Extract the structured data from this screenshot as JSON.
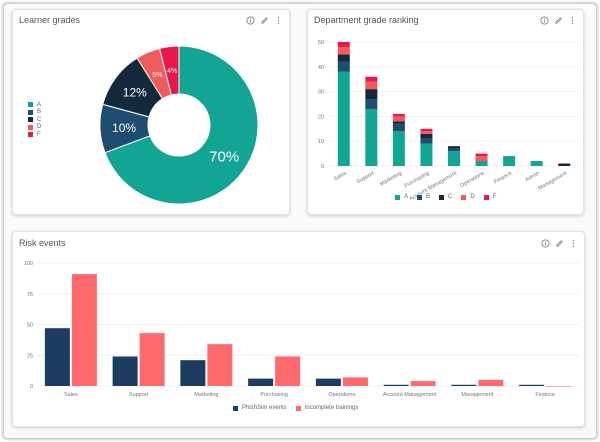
{
  "colors": {
    "A": "#12a594",
    "B": "#1e4d6f",
    "C": "#15293d",
    "D": "#f05b5b",
    "F": "#e8174b",
    "phish": "#1c3d5f",
    "incomplete": "#ff6a6f"
  },
  "icons": [
    "info-icon",
    "edit-icon",
    "more-vertical-icon"
  ],
  "learner_grades": {
    "title": "Learner grades",
    "legend": [
      {
        "label": "A",
        "color": "#12a594"
      },
      {
        "label": "B",
        "color": "#1e4d6f"
      },
      {
        "label": "C",
        "color": "#15293d"
      },
      {
        "label": "D",
        "color": "#f05b5b"
      },
      {
        "label": "F",
        "color": "#e8174b"
      }
    ]
  },
  "department_ranking": {
    "title": "Department grade ranking",
    "legend": [
      {
        "label": "A",
        "color": "#12a594"
      },
      {
        "label": "B",
        "color": "#1e4d6f"
      },
      {
        "label": "C",
        "color": "#15293d"
      },
      {
        "label": "D",
        "color": "#f05b5b"
      },
      {
        "label": "F",
        "color": "#e8174b"
      }
    ]
  },
  "risk_events": {
    "title": "Risk events",
    "legend": [
      {
        "label": "PhishSim events",
        "color": "#1c3d5f"
      },
      {
        "label": "Incomplete trainings",
        "color": "#ff6a6f"
      }
    ]
  },
  "chart_data": [
    {
      "type": "pie",
      "title": "Learner grades",
      "labels": [
        "A",
        "B",
        "C",
        "D",
        "F"
      ],
      "values": [
        70,
        10,
        12,
        5,
        4
      ],
      "slice_labels": [
        "70%",
        "10%",
        "12%",
        "5%",
        "4%"
      ],
      "donut": true,
      "legend": "left"
    },
    {
      "type": "bar",
      "stacked": true,
      "title": "Department grade ranking",
      "categories": [
        "Sales",
        "Support",
        "Marketing",
        "Purchasing",
        "Account Management",
        "Operations",
        "Finance",
        "Admin",
        "Management"
      ],
      "series": [
        {
          "name": "A",
          "values": [
            38,
            23,
            14,
            9,
            6,
            2,
            4,
            2,
            0
          ]
        },
        {
          "name": "B",
          "values": [
            4,
            4,
            3,
            2,
            1,
            0,
            0,
            0,
            0
          ]
        },
        {
          "name": "C",
          "values": [
            3,
            4,
            1,
            2,
            1,
            0,
            0,
            0,
            1
          ]
        },
        {
          "name": "D",
          "values": [
            3,
            3,
            2,
            1,
            0,
            2,
            0,
            0,
            0
          ]
        },
        {
          "name": "F",
          "values": [
            2,
            2,
            1,
            1,
            0,
            1,
            0,
            0,
            0
          ]
        }
      ],
      "ylim": [
        0,
        50
      ],
      "yticks": [
        0,
        10,
        20,
        30,
        40,
        50
      ],
      "grid": true,
      "legend": "bottom"
    },
    {
      "type": "bar",
      "title": "Risk events",
      "categories": [
        "Sales",
        "Support",
        "Marketing",
        "Purchasing",
        "Operations",
        "Account Management",
        "Management",
        "Finance"
      ],
      "series": [
        {
          "name": "PhishSim events",
          "values": [
            47,
            24,
            21,
            6,
            6,
            1,
            1,
            1
          ]
        },
        {
          "name": "Incomplete trainings",
          "values": [
            91,
            43,
            34,
            24,
            7,
            4,
            5,
            0
          ]
        }
      ],
      "ylim": [
        0,
        100
      ],
      "yticks": [
        0,
        25,
        50,
        75,
        100
      ],
      "grid": true,
      "legend": "bottom"
    }
  ]
}
